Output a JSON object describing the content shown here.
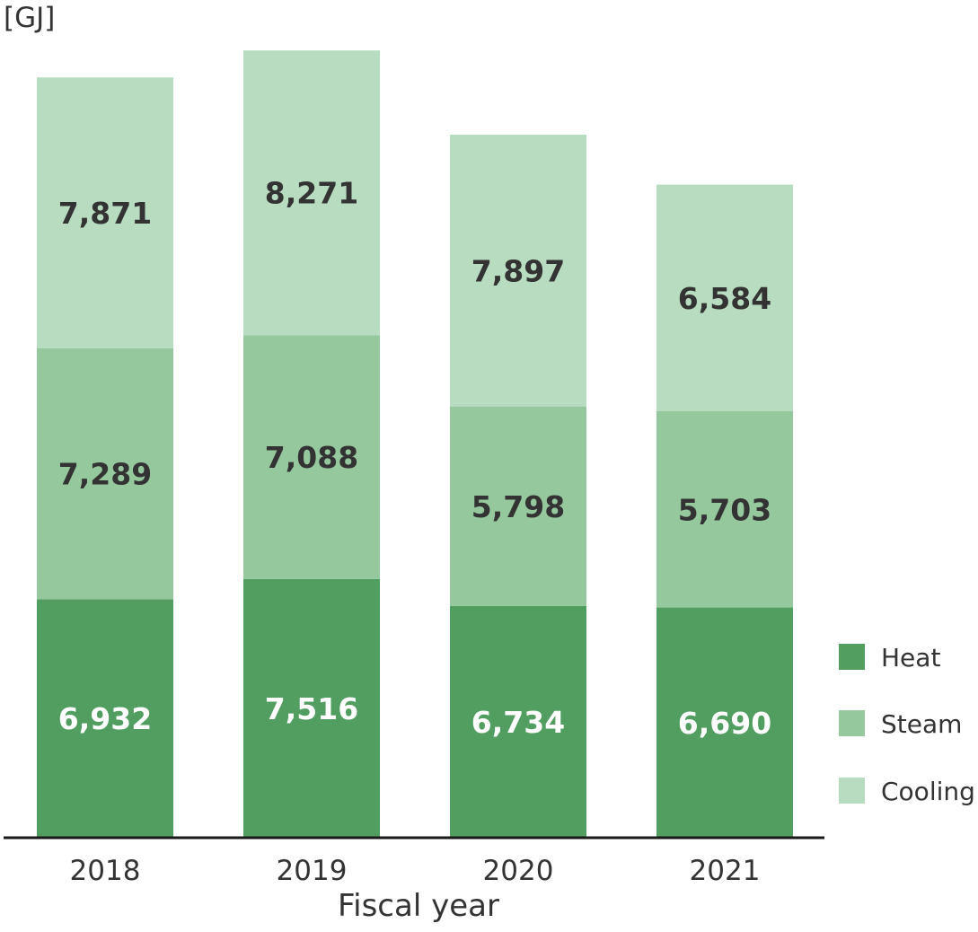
{
  "chart_data": {
    "type": "bar",
    "stacked": true,
    "unit_label": "[GJ]",
    "xlabel": "Fiscal year",
    "categories": [
      "2018",
      "2019",
      "2020",
      "2021"
    ],
    "series": [
      {
        "name": "Heat",
        "values": [
          6932,
          7516,
          6734,
          6690
        ],
        "color": "#529e61",
        "label_color": "#ffffff"
      },
      {
        "name": "Steam",
        "values": [
          7289,
          7088,
          5798,
          5703
        ],
        "color": "#96c89e",
        "label_color": "#333333"
      },
      {
        "name": "Cooling",
        "values": [
          7871,
          8271,
          7897,
          6584
        ],
        "color": "#b8dcc0",
        "label_color": "#333333"
      }
    ],
    "value_labels": [
      [
        "6,932",
        "7,516",
        "6,734",
        "6,690"
      ],
      [
        "7,289",
        "7,088",
        "5,798",
        "5,703"
      ],
      [
        "7,871",
        "8,271",
        "7,897",
        "6,584"
      ]
    ],
    "ylim": [
      0,
      23000
    ],
    "grid": false,
    "legend_position": "bottom-right"
  }
}
